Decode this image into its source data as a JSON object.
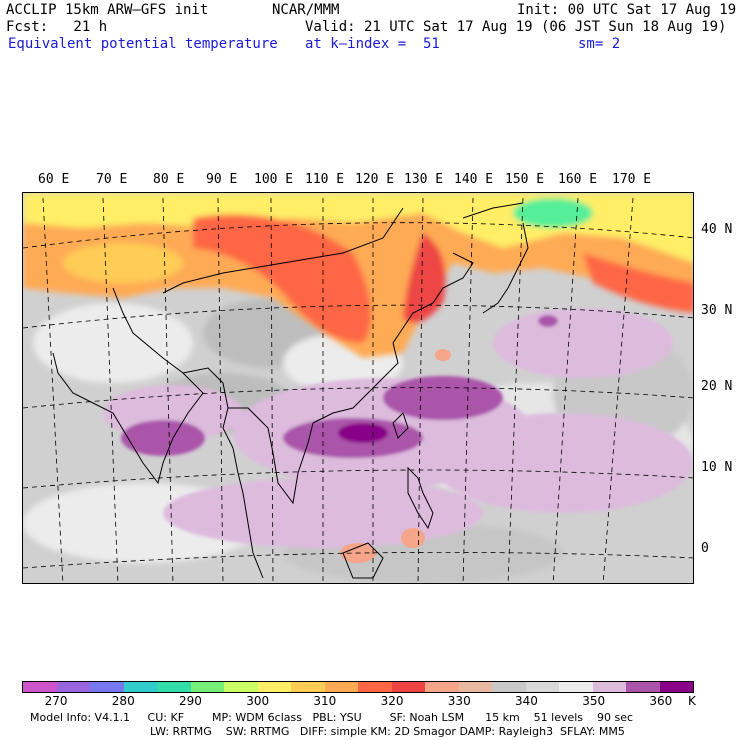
{
  "header": {
    "model_line": "ACCLIP 15km ARW–GFS init",
    "center": "NCAR/MMM",
    "init": "Init: 00 UTC Sat 17 Aug 19",
    "fcst": "Fcst:   21 h",
    "valid": "Valid: 21 UTC Sat 17 Aug 19 (06 JST Sun 18 Aug 19)",
    "field": "Equivalent potential temperature",
    "level": "at k–index =  51",
    "smooth": "sm= 2"
  },
  "map": {
    "lon_labels": [
      "60 E",
      "70 E",
      "80 E",
      "90 E",
      "100 E",
      "110 E",
      "120 E",
      "130 E",
      "140 E",
      "150 E",
      "160 E",
      "170 E"
    ],
    "lat_labels": [
      "40 N",
      "30 N",
      "20 N",
      "10 N",
      "0"
    ],
    "colors": {
      "land_line": "#000000",
      "grid_line": "#000000",
      "background": "#d8d8d8"
    }
  },
  "colorbar": {
    "unit": "K",
    "labels": [
      "270",
      "280",
      "290",
      "300",
      "310",
      "320",
      "330",
      "340",
      "350",
      "360"
    ],
    "colors": [
      "#cc55cc",
      "#9966dd",
      "#7777ee",
      "#33cccc",
      "#33ddaa",
      "#77ee77",
      "#ccff66",
      "#ffee66",
      "#ffcc55",
      "#ffaa55",
      "#ff6644",
      "#ee4444",
      "#f5a58a",
      "#e8b8a0",
      "#c8c8c8",
      "#d8d8d8",
      "#ececec",
      "#ddbbdd",
      "#aa55aa",
      "#880088"
    ]
  },
  "footer": {
    "line1": "Model Info: V4.1.1     CU: KF        MP: WDM 6class   PBL: YSU        SF: Noah LSM      15 km    51 levels    90 sec",
    "line2": "LW: RRTMG    SW: RRTMG   DIFF: simple KM: 2D Smagor DAMP: Rayleigh3  SFLAY: MM5"
  }
}
